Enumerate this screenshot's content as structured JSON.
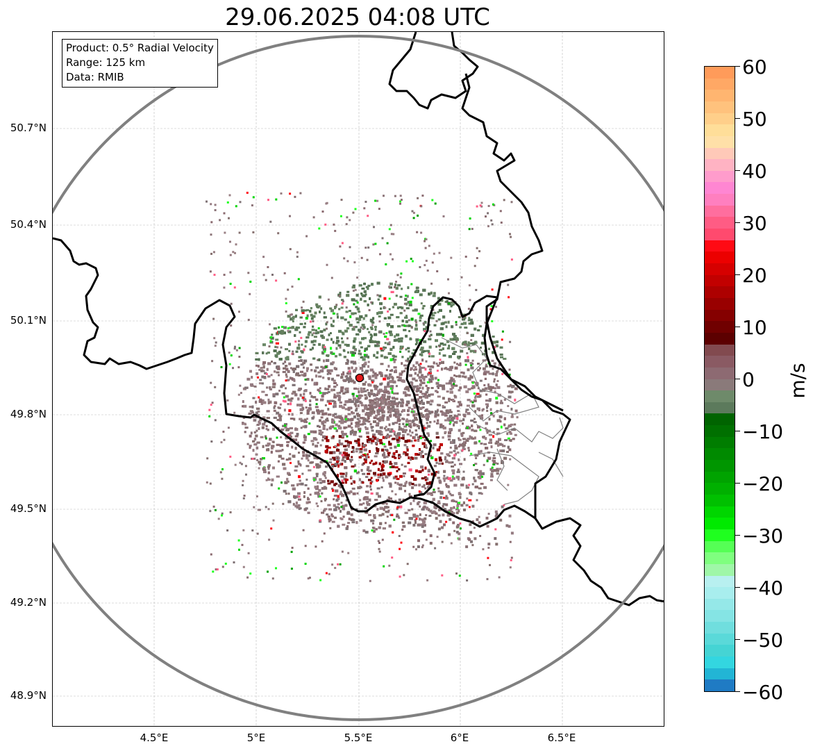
{
  "map": {
    "title": "29.06.2025 04:08 UTC",
    "info_box": {
      "lines": [
        "Product: 0.5° Radial Velocity",
        "Range: 125 km",
        "Data: RMIB"
      ]
    },
    "lat_labels": [
      "50.7°N",
      "50.4°N",
      "50.1°N",
      "49.8°N",
      "49.5°N",
      "49.2°N",
      "48.9°N"
    ],
    "lon_labels": [
      "4.5°E",
      "5°E",
      "5.5°E",
      "6°E",
      "6.5°E"
    ],
    "radar_site": {
      "lat": 49.91,
      "lon": 5.505,
      "marker_color": "#e31a1c"
    },
    "range_ring_color": "#808080",
    "border_color": "#000000",
    "subdivision_color": "#808080"
  },
  "colorbar": {
    "unit": "m/s",
    "tick_labels": [
      "60",
      "50",
      "40",
      "30",
      "20",
      "10",
      "0",
      "−10",
      "−20",
      "−30",
      "−40",
      "−50",
      "−60"
    ],
    "min": -60,
    "max": 60,
    "colors_top_to_bottom": [
      "#ff9b5a",
      "#ffa865",
      "#ffb570",
      "#ffc27d",
      "#ffcf8a",
      "#ffde99",
      "#ffe0a8",
      "#ffc9b8",
      "#ffb3c3",
      "#ff9ccc",
      "#ff86d2",
      "#ff7fbf",
      "#ff6e9e",
      "#ff5c84",
      "#ff4a6e",
      "#ff0a14",
      "#ec0000",
      "#d60000",
      "#c20000",
      "#ad0000",
      "#990000",
      "#850000",
      "#700000",
      "#5c0000",
      "#824a4f",
      "#8a5a63",
      "#8d6a72",
      "#8a7a7a",
      "#6e8a6a",
      "#5c7a5c",
      "#006400",
      "#007000",
      "#007d00",
      "#008a00",
      "#009600",
      "#00a300",
      "#00b000",
      "#00c000",
      "#00d600",
      "#00ea00",
      "#1fff1f",
      "#55ff55",
      "#7fff7f",
      "#9ff7a8",
      "#b8f0f0",
      "#a8eeee",
      "#95e8e8",
      "#85e4e4",
      "#70dede",
      "#5ad9d9",
      "#45d4d4",
      "#33d6e0",
      "#22b5d5",
      "#1f7bc4"
    ]
  }
}
